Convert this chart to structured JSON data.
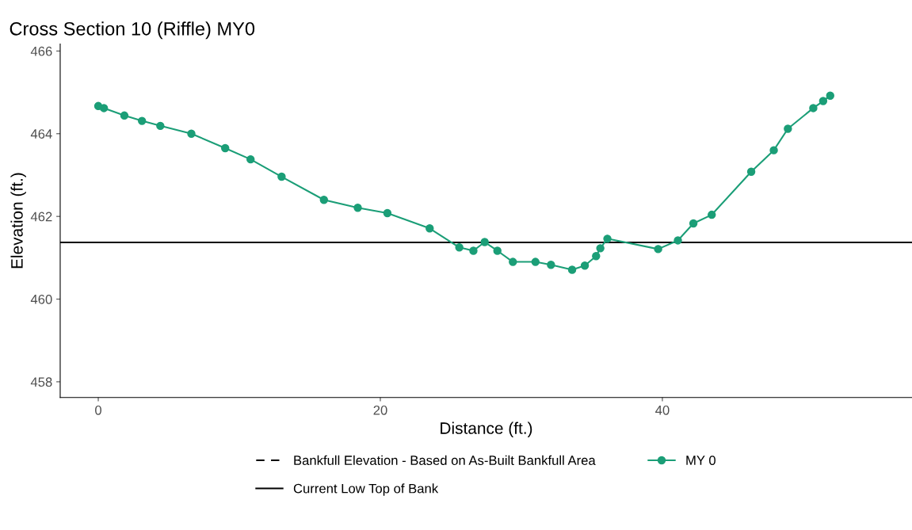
{
  "chart_data": {
    "type": "line",
    "title": "Cross Section 10 (Riffle) MY0",
    "xlabel": "Distance (ft.)",
    "ylabel": "Elevation (ft.)",
    "x": [
      0,
      0.4,
      1.85,
      3.1,
      4.4,
      6.6,
      9.0,
      10.8,
      13.0,
      16.0,
      18.4,
      20.5,
      23.5,
      25.6,
      26.6,
      27.4,
      28.3,
      29.4,
      31.0,
      32.1,
      33.6,
      34.5,
      35.3,
      35.6,
      36.1,
      39.7,
      41.1,
      42.2,
      43.5,
      46.3,
      47.9,
      48.9,
      50.7,
      51.4,
      51.9
    ],
    "series": [
      {
        "name": "MY 0",
        "color": "#1b9e77",
        "values": [
          464.67,
          464.62,
          464.44,
          464.31,
          464.19,
          464.0,
          463.65,
          463.38,
          462.96,
          462.4,
          462.21,
          462.08,
          461.71,
          461.25,
          461.17,
          461.38,
          461.17,
          460.9,
          460.9,
          460.83,
          460.71,
          460.81,
          461.04,
          461.23,
          461.46,
          461.21,
          461.42,
          461.83,
          462.04,
          463.08,
          463.6,
          464.12,
          464.62,
          464.79,
          464.92
        ]
      }
    ],
    "ref_lines": [
      {
        "axis": "y",
        "value": null,
        "label": "Bankfull Elevation - Based on As-Built Bankfull Area",
        "color": "#000000",
        "line_style": "dashed"
      },
      {
        "axis": "y",
        "value": 461.37,
        "label": "Current Low Top of Bank",
        "color": "#000000",
        "line_style": "solid"
      }
    ],
    "xlim": [
      -2.7,
      57.7
    ],
    "ylim": [
      457.62,
      466.17
    ],
    "xticks": [
      0,
      20,
      40
    ],
    "yticks": [
      458,
      460,
      462,
      464,
      466
    ],
    "marker": "circle",
    "line_style": "solid",
    "grid": false,
    "legend": "bottom"
  }
}
